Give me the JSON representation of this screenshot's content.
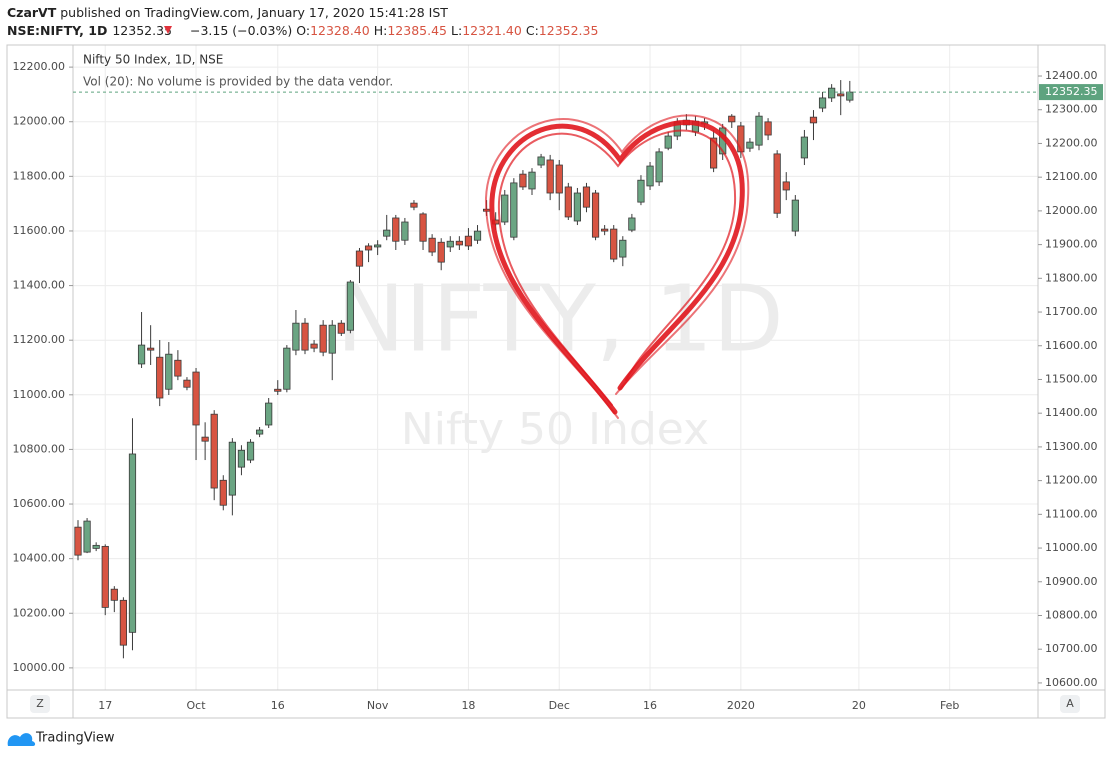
{
  "header": {
    "user": "CzarVT",
    "publisher_note": "published on TradingView.com, January 17, 2020 15:41:28 IST",
    "symbol": "NSE:NIFTY, 1D",
    "last": "12352.35",
    "change": "−3.15 (−0.03%)",
    "ohlc": [
      {
        "label": "O:",
        "value": "12328.40"
      },
      {
        "label": "H:",
        "value": "12385.45"
      },
      {
        "label": "L:",
        "value": "12321.40"
      },
      {
        "label": "C:",
        "value": "12352.35"
      }
    ]
  },
  "chart_data": {
    "type": "candlestick",
    "legend_title": "Nifty 50 Index, 1D, NSE",
    "volume_note": "Vol (20): No volume is provided by the data vendor.",
    "watermark": "NIFTY, 1D",
    "watermark_subtitle": "Nifty 50 Index",
    "categories": [
      null,
      null,
      null,
      "17",
      null,
      null,
      null,
      null,
      null,
      null,
      null,
      null,
      null,
      "Oct",
      null,
      null,
      null,
      null,
      null,
      null,
      null,
      null,
      "16",
      null,
      null,
      null,
      null,
      null,
      null,
      null,
      null,
      null,
      null,
      "Nov",
      null,
      null,
      null,
      null,
      null,
      null,
      null,
      null,
      null,
      "18",
      null,
      null,
      null,
      null,
      null,
      null,
      null,
      null,
      null,
      "Dec",
      null,
      null,
      null,
      null,
      null,
      null,
      null,
      null,
      null,
      "16",
      null,
      null,
      null,
      null,
      null,
      null,
      null,
      null,
      null,
      "2020",
      null,
      null,
      null,
      null,
      null,
      null,
      null,
      null,
      null,
      null,
      null,
      null,
      "20",
      null,
      null,
      null,
      null,
      null,
      null,
      null,
      null,
      null,
      "Feb",
      null,
      null,
      null,
      null,
      null,
      null,
      null,
      null
    ],
    "open": [
      11062,
      10988,
      10999,
      11005,
      10878,
      10845,
      10750,
      11546,
      11593,
      11566,
      11471,
      11557,
      11498,
      11522,
      11329,
      11397,
      11201,
      11157,
      11240,
      11261,
      11338,
      11365,
      11471,
      11471,
      11587,
      11667,
      11605,
      11661,
      11578,
      11667,
      11646,
      11881,
      11896,
      11893,
      11925,
      11979,
      11913,
      12023,
      11991,
      11919,
      11907,
      11893,
      11910,
      11925,
      11913,
      12005,
      11973,
      11967,
      11922,
      12109,
      12065,
      12136,
      12151,
      12136,
      12071,
      11970,
      12071,
      12053,
      11946,
      11946,
      11863,
      11943,
      12026,
      12074,
      12086,
      12186,
      12222,
      12269,
      12234,
      12258,
      12216,
      12169,
      12281,
      12252,
      12186,
      12195,
      12264,
      12169,
      12086,
      11940,
      12157,
      12278,
      12305,
      12335,
      12347,
      12328.4,
      null,
      null,
      null,
      null,
      null,
      null,
      null,
      null,
      null,
      null,
      null,
      null,
      null,
      null,
      null,
      null,
      null,
      null,
      null
    ],
    "high": [
      11083,
      11089,
      11017,
      11011,
      10887,
      10854,
      11385,
      11700,
      11661,
      11617,
      11611,
      11587,
      11507,
      11534,
      11373,
      11409,
      11216,
      11326,
      11305,
      11323,
      11359,
      11445,
      11498,
      11602,
      11706,
      11682,
      11617,
      11676,
      11676,
      11676,
      11795,
      11890,
      11904,
      11913,
      11988,
      11988,
      11979,
      12032,
      11996,
      11931,
      11919,
      11925,
      11925,
      11949,
      11958,
      12032,
      11996,
      12062,
      12097,
      12121,
      12127,
      12169,
      12166,
      12151,
      12083,
      12068,
      12083,
      12062,
      11958,
      11958,
      11925,
      11991,
      12106,
      12145,
      12186,
      12234,
      12275,
      12287,
      12281,
      12275,
      12240,
      12258,
      12287,
      12264,
      12216,
      12293,
      12275,
      12180,
      12115,
      12047,
      12240,
      12299,
      12353,
      12376,
      12388,
      12385.45,
      null,
      null,
      null,
      null,
      null,
      null,
      null,
      null,
      null,
      null,
      null,
      null,
      null,
      null,
      null,
      null,
      null,
      null,
      null
    ],
    "low": [
      10964,
      10985,
      10991,
      10801,
      10810,
      10673,
      10697,
      11534,
      11543,
      11421,
      11454,
      11498,
      11468,
      11261,
      11261,
      11142,
      11112,
      11097,
      11216,
      11252,
      11329,
      11356,
      11454,
      11462,
      11572,
      11575,
      11581,
      11569,
      11498,
      11629,
      11637,
      11786,
      11848,
      11869,
      11913,
      11884,
      11899,
      12002,
      11884,
      11866,
      11824,
      11878,
      11884,
      11884,
      11902,
      11985,
      11943,
      11958,
      11913,
      12062,
      12047,
      12127,
      12032,
      12002,
      11973,
      11958,
      11996,
      11913,
      11928,
      11848,
      11836,
      11937,
      12017,
      12062,
      12074,
      12180,
      12210,
      12240,
      12222,
      12240,
      12115,
      12151,
      12246,
      12157,
      12175,
      12180,
      12210,
      11979,
      12032,
      11925,
      12136,
      12210,
      12293,
      12323,
      12284,
      12321.4,
      null,
      null,
      null,
      null,
      null,
      null,
      null,
      null,
      null,
      null,
      null,
      null,
      null,
      null,
      null,
      null,
      null,
      null,
      null
    ],
    "close": [
      10979,
      11080,
      11008,
      10824,
      10845,
      10712,
      11279,
      11602,
      11587,
      11445,
      11575,
      11510,
      11477,
      11365,
      11317,
      11178,
      11127,
      11314,
      11290,
      11314,
      11350,
      11430,
      11465,
      11593,
      11667,
      11587,
      11593,
      11581,
      11661,
      11637,
      11789,
      11836,
      11884,
      11899,
      11943,
      11910,
      11967,
      12011,
      11910,
      11878,
      11848,
      11910,
      11899,
      11896,
      11940,
      11999,
      11961,
      12047,
      12083,
      12071,
      12115,
      12160,
      12053,
      12053,
      11982,
      12053,
      12011,
      11922,
      11940,
      11857,
      11913,
      11979,
      12091,
      12133,
      12175,
      12222,
      12264,
      12255,
      12266,
      12264,
      12127,
      12246,
      12264,
      12175,
      12204,
      12281,
      12225,
      11993,
      12062,
      12032,
      12219,
      12261,
      12335,
      12364,
      12341,
      12352.35,
      null,
      null,
      null,
      null,
      null,
      null,
      null,
      null,
      null,
      null,
      null,
      null,
      null,
      null,
      null,
      null,
      null,
      null,
      null
    ],
    "up_color": "#6ba583",
    "down_color": "#d75442",
    "ylim": [
      10579,
      12492
    ],
    "yticks": [
      {
        "value": 10600,
        "label": "10600.00"
      },
      {
        "value": 10700,
        "label": "10700.00"
      },
      {
        "value": 10800,
        "label": "10800.00"
      },
      {
        "value": 10900,
        "label": "10900.00"
      },
      {
        "value": 11000,
        "label": "11000.00"
      },
      {
        "value": 11100,
        "label": "11100.00"
      },
      {
        "value": 11200,
        "label": "11200.00"
      },
      {
        "value": 11300,
        "label": "11300.00"
      },
      {
        "value": 11400,
        "label": "11400.00"
      },
      {
        "value": 11500,
        "label": "11500.00"
      },
      {
        "value": 11600,
        "label": "11600.00"
      },
      {
        "value": 11700,
        "label": "11700.00"
      },
      {
        "value": 11800,
        "label": "11800.00"
      },
      {
        "value": 11900,
        "label": "11900.00"
      },
      {
        "value": 12000,
        "label": "12000.00"
      },
      {
        "value": 12100,
        "label": "12100.00"
      },
      {
        "value": 12200,
        "label": "12200.00"
      },
      {
        "value": 12300,
        "label": "12300.00"
      },
      {
        "value": 12400,
        "label": "12400.00"
      }
    ],
    "y2lim": [
      9919,
      12281
    ],
    "y2ticks": [
      {
        "value": 10000,
        "label": "10000.00"
      },
      {
        "value": 10200,
        "label": "10200.00"
      },
      {
        "value": 10400,
        "label": "10400.00"
      },
      {
        "value": 10600,
        "label": "10600.00"
      },
      {
        "value": 10800,
        "label": "10800.00"
      },
      {
        "value": 11000,
        "label": "11000.00"
      },
      {
        "value": 11200,
        "label": "11200.00"
      },
      {
        "value": 11400,
        "label": "11400.00"
      },
      {
        "value": 11600,
        "label": "11600.00"
      },
      {
        "value": 11800,
        "label": "11800.00"
      },
      {
        "value": 12000,
        "label": "12000.00"
      },
      {
        "value": 12200,
        "label": "12200.00"
      }
    ],
    "grid": true,
    "last_price": {
      "value": 12352.35,
      "label": "12352.35",
      "color": "#5ea37f"
    }
  },
  "buttons": {
    "left": "Z",
    "right": "A"
  },
  "footer": {
    "brand": "TradingView"
  }
}
